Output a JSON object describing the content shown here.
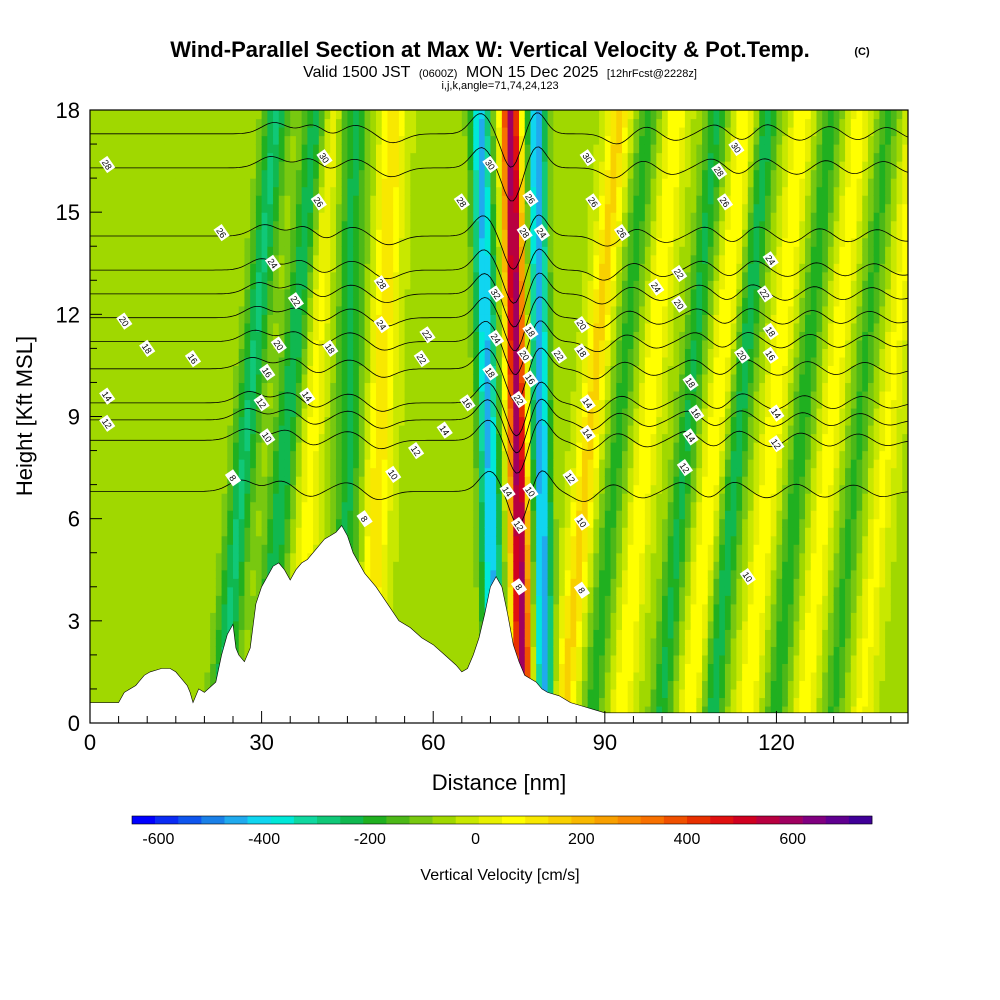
{
  "chart_data": {
    "type": "heatmap",
    "title": "Wind-Parallel Section at Max W: Vertical Velocity & Pot.Temp.",
    "copyright_mark": "(C)",
    "subtitle_prefix": "Valid 1500 JST",
    "subtitle_utc": "(0600Z)",
    "subtitle_date": "MON 15 Dec 2025",
    "subtitle_fcst": "[12hrFcst@2228z]",
    "section_params": "i,j,k,angle=71,74,24,123",
    "xlabel": "Distance [nm]",
    "ylabel": "Height [Kft MSL]",
    "xlim": [
      0,
      143
    ],
    "ylim": [
      0,
      18
    ],
    "x_ticks": [
      "0",
      "30",
      "60",
      "90",
      "120"
    ],
    "y_ticks": [
      "0",
      "3",
      "6",
      "9",
      "12",
      "15",
      "18"
    ],
    "colorbar": {
      "title": "Vertical Velocity [cm/s]",
      "ticks": [
        "-600",
        "-400",
        "-200",
        "0",
        "200",
        "400",
        "600"
      ],
      "min": -650,
      "max": 750,
      "step": 50,
      "colors": [
        "#0000ff",
        "#0a2bf4",
        "#0f55ee",
        "#1a80e8",
        "#20aaee",
        "#10d5f0",
        "#00e8d8",
        "#10d8a0",
        "#10c878",
        "#10b850",
        "#20b020",
        "#4cb818",
        "#78c810",
        "#a0d800",
        "#c8e800",
        "#e8f000",
        "#ffff00",
        "#f8e800",
        "#f8d000",
        "#f8b800",
        "#f8a000",
        "#f88800",
        "#f87000",
        "#f05000",
        "#e83000",
        "#e01010",
        "#d00020",
        "#b80040",
        "#a00060",
        "#800080",
        "#600090",
        "#400098"
      ]
    },
    "terrain_kft": {
      "x": [
        0,
        5,
        6,
        8,
        8.5,
        9.5,
        10.5,
        12.5,
        14,
        15,
        16,
        17,
        17.5,
        18,
        19,
        20,
        22,
        23,
        24,
        25,
        25.5,
        26,
        27,
        28,
        29,
        30,
        31,
        32,
        33,
        34,
        35,
        36,
        37,
        38,
        40,
        41,
        42,
        43,
        44,
        45,
        46,
        48,
        50,
        52,
        54,
        56,
        58,
        60,
        62,
        64,
        65,
        66,
        67,
        68,
        69,
        70,
        71,
        72,
        73,
        74,
        75,
        76,
        77,
        78,
        79,
        80,
        82,
        84,
        86,
        88,
        90,
        100,
        110,
        120,
        130,
        140,
        143
      ],
      "h": [
        0.6,
        0.6,
        0.9,
        1.1,
        1.2,
        1.4,
        1.5,
        1.6,
        1.6,
        1.5,
        1.3,
        1.1,
        0.9,
        0.6,
        1.0,
        0.9,
        1.2,
        2.0,
        2.6,
        2.9,
        2.2,
        2.0,
        1.8,
        2.2,
        3.5,
        4.0,
        4.3,
        4.6,
        4.7,
        4.5,
        4.2,
        4.5,
        4.7,
        4.8,
        5.2,
        5.4,
        5.5,
        5.6,
        5.8,
        5.5,
        5.0,
        4.4,
        4.0,
        3.5,
        3.0,
        2.8,
        2.5,
        2.3,
        2.0,
        1.7,
        1.5,
        1.6,
        2.0,
        2.5,
        3.2,
        4.0,
        4.3,
        4.0,
        3.2,
        2.3,
        1.8,
        1.4,
        1.3,
        1.2,
        1.0,
        0.9,
        0.8,
        0.6,
        0.5,
        0.4,
        0.3,
        0.3,
        0.3,
        0.3,
        0.3,
        0.3,
        0.3
      ]
    },
    "w_field": {
      "waves": [
        {
          "x0": 26,
          "slope_nm_per_kft": 0.55,
          "amp_cms": -250,
          "width_nm": 2.2
        },
        {
          "x0": 33,
          "slope_nm_per_kft": 0.55,
          "amp_cms": -230,
          "width_nm": 2.2
        },
        {
          "x0": 45,
          "slope_nm_per_kft": 0.1,
          "amp_cms": -200,
          "width_nm": 2.5
        },
        {
          "x0": 50,
          "slope_nm_per_kft": 0.25,
          "amp_cms": 200,
          "width_nm": 2.2
        },
        {
          "x0": 38,
          "slope_nm_per_kft": 0.35,
          "amp_cms": 130,
          "width_nm": 2.0
        },
        {
          "x0": 70,
          "slope_nm_per_kft": -0.15,
          "amp_cms": -450,
          "width_nm": 1.8
        },
        {
          "x0": 75,
          "slope_nm_per_kft": -0.12,
          "amp_cms": 750,
          "width_nm": 1.6
        },
        {
          "x0": 79,
          "slope_nm_per_kft": -0.08,
          "amp_cms": -480,
          "width_nm": 1.6
        },
        {
          "x0": 86,
          "slope_nm_per_kft": 0.55,
          "amp_cms": 230,
          "width_nm": 2.0
        },
        {
          "x0": 91,
          "slope_nm_per_kft": 0.55,
          "amp_cms": -160,
          "width_nm": 2.0
        },
        {
          "x0": 96,
          "slope_nm_per_kft": 0.55,
          "amp_cms": 150,
          "width_nm": 2.0
        },
        {
          "x0": 103,
          "slope_nm_per_kft": 0.55,
          "amp_cms": -200,
          "width_nm": 2.0
        },
        {
          "x0": 108,
          "slope_nm_per_kft": 0.55,
          "amp_cms": 160,
          "width_nm": 2.0
        },
        {
          "x0": 112,
          "slope_nm_per_kft": 0.55,
          "amp_cms": -220,
          "width_nm": 2.0
        },
        {
          "x0": 118,
          "slope_nm_per_kft": 0.55,
          "amp_cms": 150,
          "width_nm": 2.0
        },
        {
          "x0": 123,
          "slope_nm_per_kft": 0.55,
          "amp_cms": -170,
          "width_nm": 2.0
        },
        {
          "x0": 128,
          "slope_nm_per_kft": 0.55,
          "amp_cms": 140,
          "width_nm": 2.0
        },
        {
          "x0": 133,
          "slope_nm_per_kft": 0.55,
          "amp_cms": -150,
          "width_nm": 2.0
        },
        {
          "x0": 138,
          "slope_nm_per_kft": 0.55,
          "amp_cms": 120,
          "width_nm": 2.0
        }
      ]
    },
    "theta_contours": [
      {
        "label": "8",
        "base_kft": 6.8
      },
      {
        "label": "10",
        "base_kft": 8.3
      },
      {
        "label": "12",
        "base_kft": 8.9
      },
      {
        "label": "14",
        "base_kft": 9.4
      },
      {
        "label": "16",
        "base_kft": 10.4
      },
      {
        "label": "18",
        "base_kft": 11.2
      },
      {
        "label": "20",
        "base_kft": 11.9
      },
      {
        "label": "22",
        "base_kft": 12.6
      },
      {
        "label": "24",
        "base_kft": 13.3
      },
      {
        "label": "26",
        "base_kft": 14.3
      },
      {
        "label": "28",
        "base_kft": 16.3
      },
      {
        "label": "30",
        "base_kft": 17.3
      }
    ],
    "theta_inline_labels": [
      {
        "label": "28",
        "x": 3,
        "y": 16.4
      },
      {
        "label": "26",
        "x": 23,
        "y": 14.4
      },
      {
        "label": "30",
        "x": 41,
        "y": 16.6
      },
      {
        "label": "26",
        "x": 40,
        "y": 15.3
      },
      {
        "label": "24",
        "x": 32,
        "y": 13.5
      },
      {
        "label": "22",
        "x": 36,
        "y": 12.4
      },
      {
        "label": "20",
        "x": 6,
        "y": 11.8
      },
      {
        "label": "18",
        "x": 10,
        "y": 11.0
      },
      {
        "label": "16",
        "x": 18,
        "y": 10.7
      },
      {
        "label": "20",
        "x": 33,
        "y": 11.1
      },
      {
        "label": "18",
        "x": 42,
        "y": 11.0
      },
      {
        "label": "16",
        "x": 31,
        "y": 10.3
      },
      {
        "label": "14",
        "x": 3,
        "y": 9.6
      },
      {
        "label": "12",
        "x": 3,
        "y": 8.8
      },
      {
        "label": "12",
        "x": 30,
        "y": 9.4
      },
      {
        "label": "14",
        "x": 38,
        "y": 9.6
      },
      {
        "label": "10",
        "x": 31,
        "y": 8.4
      },
      {
        "label": "8",
        "x": 25,
        "y": 7.2
      },
      {
        "label": "28",
        "x": 51,
        "y": 12.9
      },
      {
        "label": "24",
        "x": 51,
        "y": 11.7
      },
      {
        "label": "22",
        "x": 59,
        "y": 11.4
      },
      {
        "label": "22",
        "x": 58,
        "y": 10.7
      },
      {
        "label": "16",
        "x": 66,
        "y": 9.4
      },
      {
        "label": "14",
        "x": 62,
        "y": 8.6
      },
      {
        "label": "12",
        "x": 57,
        "y": 8.0
      },
      {
        "label": "10",
        "x": 53,
        "y": 7.3
      },
      {
        "label": "8",
        "x": 48,
        "y": 6.0
      },
      {
        "label": "28",
        "x": 65,
        "y": 15.3
      },
      {
        "label": "30",
        "x": 70,
        "y": 16.4
      },
      {
        "label": "32",
        "x": 71,
        "y": 12.6
      },
      {
        "label": "24",
        "x": 71,
        "y": 11.3
      },
      {
        "label": "18",
        "x": 70,
        "y": 10.3
      },
      {
        "label": "14",
        "x": 73,
        "y": 6.8
      },
      {
        "label": "26",
        "x": 77,
        "y": 15.4
      },
      {
        "label": "28",
        "x": 76,
        "y": 14.4
      },
      {
        "label": "24",
        "x": 79,
        "y": 14.4
      },
      {
        "label": "18",
        "x": 77,
        "y": 11.5
      },
      {
        "label": "20",
        "x": 76,
        "y": 10.8
      },
      {
        "label": "16",
        "x": 77,
        "y": 10.1
      },
      {
        "label": "22",
        "x": 75,
        "y": 9.5
      },
      {
        "label": "10",
        "x": 77,
        "y": 6.8
      },
      {
        "label": "12",
        "x": 75,
        "y": 5.8
      },
      {
        "label": "8",
        "x": 75,
        "y": 4.0
      },
      {
        "label": "22",
        "x": 82,
        "y": 10.8
      },
      {
        "label": "20",
        "x": 86,
        "y": 11.7
      },
      {
        "label": "18",
        "x": 86,
        "y": 10.9
      },
      {
        "label": "14",
        "x": 87,
        "y": 9.4
      },
      {
        "label": "14",
        "x": 87,
        "y": 8.5
      },
      {
        "label": "12",
        "x": 84,
        "y": 7.2
      },
      {
        "label": "10",
        "x": 86,
        "y": 5.9
      },
      {
        "label": "8",
        "x": 86,
        "y": 3.9
      },
      {
        "label": "30",
        "x": 87,
        "y": 16.6
      },
      {
        "label": "26",
        "x": 88,
        "y": 15.3
      },
      {
        "label": "26",
        "x": 93,
        "y": 14.4
      },
      {
        "label": "24",
        "x": 99,
        "y": 12.8
      },
      {
        "label": "22",
        "x": 103,
        "y": 13.2
      },
      {
        "label": "20",
        "x": 103,
        "y": 12.3
      },
      {
        "label": "18",
        "x": 105,
        "y": 10.0
      },
      {
        "label": "16",
        "x": 106,
        "y": 9.1
      },
      {
        "label": "14",
        "x": 105,
        "y": 8.4
      },
      {
        "label": "12",
        "x": 104,
        "y": 7.5
      },
      {
        "label": "28",
        "x": 110,
        "y": 16.2
      },
      {
        "label": "30",
        "x": 113,
        "y": 16.9
      },
      {
        "label": "26",
        "x": 111,
        "y": 15.3
      },
      {
        "label": "24",
        "x": 119,
        "y": 13.6
      },
      {
        "label": "22",
        "x": 118,
        "y": 12.6
      },
      {
        "label": "20",
        "x": 114,
        "y": 10.8
      },
      {
        "label": "18",
        "x": 119,
        "y": 11.5
      },
      {
        "label": "16",
        "x": 119,
        "y": 10.8
      },
      {
        "label": "14",
        "x": 120,
        "y": 9.1
      },
      {
        "label": "12",
        "x": 120,
        "y": 8.2
      },
      {
        "label": "10",
        "x": 115,
        "y": 4.3
      }
    ]
  }
}
